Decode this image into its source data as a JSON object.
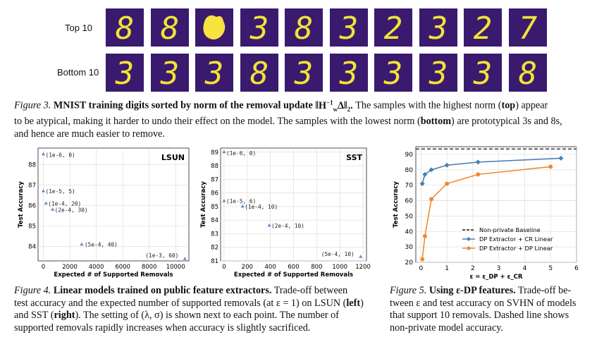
{
  "figure3": {
    "top_label": "Top 10",
    "bottom_label": "Bottom 10",
    "top_digits": [
      "8",
      "8",
      "",
      "3",
      "8",
      "3",
      "2",
      "3",
      "2",
      "7"
    ],
    "bottom_digits": [
      "3",
      "3",
      "3",
      "8",
      "3",
      "3",
      "3",
      "3",
      "3",
      "8"
    ],
    "caption_prefix": "Figure 3.",
    "caption_bold": "MNIST training digits sorted by norm of the removal update",
    "caption_formula": "‖H",
    "caption_rest_1": "The samples with the highest norm (",
    "caption_top": "top",
    "caption_rest_2": ") appear",
    "caption_line2": "to be atypical, making it harder to undo their effect on the model. The samples with the lowest norm (",
    "caption_bottom": "bottom",
    "caption_rest_3": ") are prototypical 3s and 8s,",
    "caption_line3": "and hence are much easier to remove."
  },
  "figure4": {
    "caption_prefix": "Figure 4.",
    "caption_bold": "Linear models trained on public feature extractors.",
    "caption_l1": "Trade-off between",
    "caption_l2": "test accuracy and the expected number of supported removals (at ε = 1) on LSUN (",
    "caption_left": "left",
    "caption_l2b": ")",
    "caption_l3a": "and SST (",
    "caption_right": "right",
    "caption_l3b": "). The setting of (λ, σ) is shown next to each point. The number of",
    "caption_l4": "supported removals rapidly increases when accuracy is slightly sacrificed."
  },
  "figure5": {
    "caption_prefix": "Figure 5.",
    "caption_bold": "Using ε-DP features.",
    "caption_l1": "Trade-off be-",
    "caption_l2": "tween ε and test accuracy on SVHN of models",
    "caption_l3": "that support 10 removals. Dashed line shows",
    "caption_l4": "non-private model accuracy."
  },
  "chart_data": [
    {
      "type": "scatter",
      "title": "LSUN",
      "xlabel": "Expected # of Supported Removals",
      "ylabel": "Test Accuracy",
      "xlim": [
        -400,
        11000
      ],
      "ylim": [
        83.3,
        88.8
      ],
      "xticks": [
        0,
        2000,
        4000,
        6000,
        8000,
        10000
      ],
      "yticks": [
        84,
        85,
        86,
        87,
        88
      ],
      "grid": true,
      "color": "#5b8fc9",
      "points": [
        {
          "x": 0,
          "y": 88.5,
          "label": "(1e-6, 0)"
        },
        {
          "x": 0,
          "y": 86.7,
          "label": "(1e-5, 5)"
        },
        {
          "x": 200,
          "y": 86.1,
          "label": "(1e-4, 20)"
        },
        {
          "x": 700,
          "y": 85.8,
          "label": "(2e-4, 30)"
        },
        {
          "x": 2900,
          "y": 84.1,
          "label": "(5e-4, 40)"
        },
        {
          "x": 10700,
          "y": 83.4,
          "label": "(1e-3, 60)"
        }
      ]
    },
    {
      "type": "scatter",
      "title": "SST",
      "xlabel": "Expected # of Supported Removals",
      "ylabel": "Test Accuracy",
      "xlim": [
        -30,
        1230
      ],
      "ylim": [
        81,
        89.3
      ],
      "xticks": [
        0,
        200,
        400,
        600,
        800,
        1000,
        1200
      ],
      "yticks": [
        81,
        82,
        83,
        84,
        85,
        86,
        87,
        88,
        89
      ],
      "grid": true,
      "color": "#5b8fc9",
      "points": [
        {
          "x": 0,
          "y": 89.0,
          "label": "(1e-6, 0)"
        },
        {
          "x": 0,
          "y": 85.4,
          "label": "(1e-5, 6)"
        },
        {
          "x": 160,
          "y": 85.0,
          "label": "(1e-4, 10)"
        },
        {
          "x": 390,
          "y": 83.6,
          "label": "(2e-4, 10)"
        },
        {
          "x": 1180,
          "y": 81.3,
          "label": "(5e-4, 10)"
        }
      ]
    },
    {
      "type": "line",
      "title": "",
      "xlabel": "ε = ε_DP + ε_CR",
      "ylabel": "Test Accuracy",
      "xlim": [
        -0.2,
        6
      ],
      "ylim": [
        20,
        95
      ],
      "xticks": [
        0,
        1,
        2,
        3,
        4,
        5,
        6
      ],
      "yticks": [
        20,
        30,
        40,
        50,
        60,
        70,
        80,
        90
      ],
      "grid": true,
      "legend": "bottom-right",
      "baseline": {
        "name": "Non-private Baseline",
        "y": 93.5,
        "color": "#111111"
      },
      "series": [
        {
          "name": "DP Extractor + CR Linear",
          "color": "#4a7fb0",
          "x": [
            0.05,
            0.15,
            0.4,
            1.0,
            2.2,
            5.4
          ],
          "y": [
            71,
            77,
            80,
            83,
            85,
            87.5
          ]
        },
        {
          "name": "DP Extractor + DP Linear",
          "color": "#f08a30",
          "x": [
            0.05,
            0.15,
            0.4,
            1.0,
            2.2,
            5.0
          ],
          "y": [
            22,
            37,
            61,
            71,
            77,
            82
          ]
        }
      ]
    }
  ]
}
